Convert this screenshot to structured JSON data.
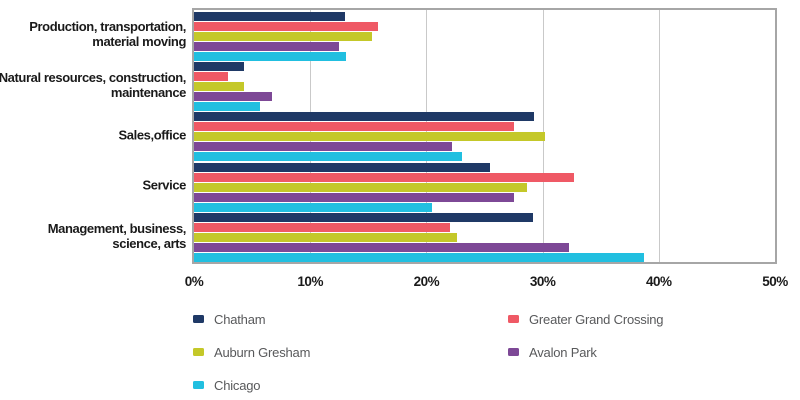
{
  "chart_data": {
    "type": "bar",
    "orientation": "horizontal",
    "title": "",
    "xlabel": "",
    "ylabel": "",
    "xlim": [
      0,
      50
    ],
    "x_ticks": [
      {
        "value": 0,
        "label": "0%"
      },
      {
        "value": 10,
        "label": "10%"
      },
      {
        "value": 20,
        "label": "20%"
      },
      {
        "value": 30,
        "label": "30%"
      },
      {
        "value": 40,
        "label": "40%"
      },
      {
        "value": 50,
        "label": "50%"
      }
    ],
    "grid": "vertical-gridlines-on",
    "categories": [
      "Production, transportation,\nmaterial moving",
      "Natural resources, construction,\nmaintenance",
      "Sales,office",
      "Service",
      "Management, business,\nscience, arts"
    ],
    "series": [
      {
        "name": "Chatham",
        "color": "#1F3966",
        "values": [
          13.0,
          4.3,
          29.3,
          25.5,
          29.2
        ]
      },
      {
        "name": "Greater Grand Crossing",
        "color": "#EF5965",
        "values": [
          15.8,
          2.9,
          27.5,
          32.7,
          22.0
        ]
      },
      {
        "name": "Auburn Gresham",
        "color": "#C4C829",
        "values": [
          15.3,
          4.3,
          30.2,
          28.7,
          22.6
        ]
      },
      {
        "name": "Avalon Park",
        "color": "#7D4896",
        "values": [
          12.5,
          6.7,
          22.2,
          27.5,
          32.3
        ]
      },
      {
        "name": "Chicago",
        "color": "#21BFE0",
        "values": [
          13.1,
          5.7,
          23.1,
          20.5,
          38.7
        ]
      }
    ],
    "legend_position": "bottom",
    "legend_columns": {
      "left": [
        "Chatham",
        "Auburn Gresham",
        "Chicago"
      ],
      "right": [
        "Greater Grand Crossing",
        "Avalon Park"
      ]
    }
  },
  "colors": {
    "background": "#FFFFFF",
    "plot_border": "#A6A6A6",
    "gridline": "#C9C9C9",
    "axis_text": "#1A1A1A",
    "legend_text": "#58595B"
  }
}
